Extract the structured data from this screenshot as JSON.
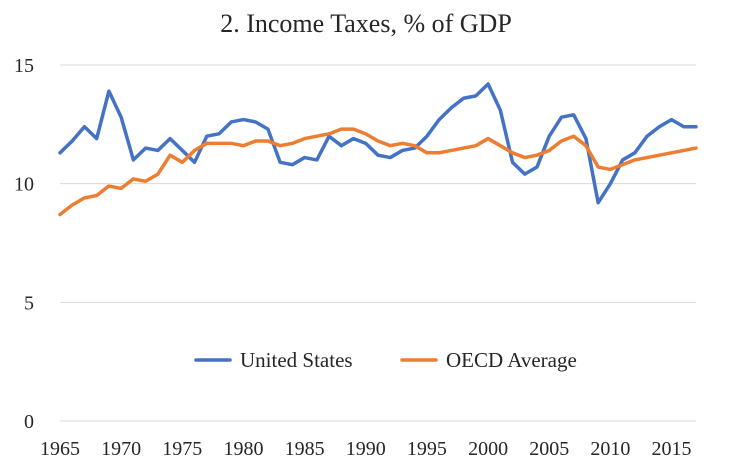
{
  "chart_data": {
    "type": "line",
    "title": "2. Income Taxes, % of GDP",
    "xlabel": "",
    "ylabel": "",
    "ylim": [
      0,
      15
    ],
    "xlim": [
      1965,
      2017
    ],
    "y_ticks": [
      "0",
      "5",
      "10",
      "15"
    ],
    "x_ticks": [
      "1965",
      "1970",
      "1975",
      "1980",
      "1985",
      "1990",
      "1995",
      "2000",
      "2005",
      "2010",
      "2015"
    ],
    "grid": "horizontal",
    "legend_position": "bottom-center",
    "x": [
      1965,
      1966,
      1967,
      1968,
      1969,
      1970,
      1971,
      1972,
      1973,
      1974,
      1975,
      1976,
      1977,
      1978,
      1979,
      1980,
      1981,
      1982,
      1983,
      1984,
      1985,
      1986,
      1987,
      1988,
      1989,
      1990,
      1991,
      1992,
      1993,
      1994,
      1995,
      1996,
      1997,
      1998,
      1999,
      2000,
      2001,
      2002,
      2003,
      2004,
      2005,
      2006,
      2007,
      2008,
      2009,
      2010,
      2011,
      2012,
      2013,
      2014,
      2015,
      2016,
      2017
    ],
    "series": [
      {
        "name": "United States",
        "color": "#4472c4",
        "values": [
          11.3,
          11.8,
          12.4,
          11.9,
          13.9,
          12.8,
          11.0,
          11.5,
          11.4,
          11.9,
          11.4,
          10.9,
          12.0,
          12.1,
          12.6,
          12.7,
          12.6,
          12.3,
          10.9,
          10.8,
          11.1,
          11.0,
          12.0,
          11.6,
          11.9,
          11.7,
          11.2,
          11.1,
          11.4,
          11.5,
          12.0,
          12.7,
          13.2,
          13.6,
          13.7,
          14.2,
          13.1,
          10.9,
          10.4,
          10.7,
          12.0,
          12.8,
          12.9,
          11.9,
          9.2,
          10.0,
          11.0,
          11.3,
          12.0,
          12.4,
          12.7,
          12.4,
          12.4
        ]
      },
      {
        "name": "OECD Average",
        "color": "#ed7d31",
        "values": [
          8.7,
          9.1,
          9.4,
          9.5,
          9.9,
          9.8,
          10.2,
          10.1,
          10.4,
          11.2,
          10.9,
          11.4,
          11.7,
          11.7,
          11.7,
          11.6,
          11.8,
          11.8,
          11.6,
          11.7,
          11.9,
          12.0,
          12.1,
          12.3,
          12.3,
          12.1,
          11.8,
          11.6,
          11.7,
          11.6,
          11.3,
          11.3,
          11.4,
          11.5,
          11.6,
          11.9,
          11.6,
          11.3,
          11.1,
          11.2,
          11.4,
          11.8,
          12.0,
          11.6,
          10.7,
          10.6,
          10.8,
          11.0,
          11.1,
          11.2,
          11.3,
          11.4,
          11.5
        ]
      }
    ]
  }
}
